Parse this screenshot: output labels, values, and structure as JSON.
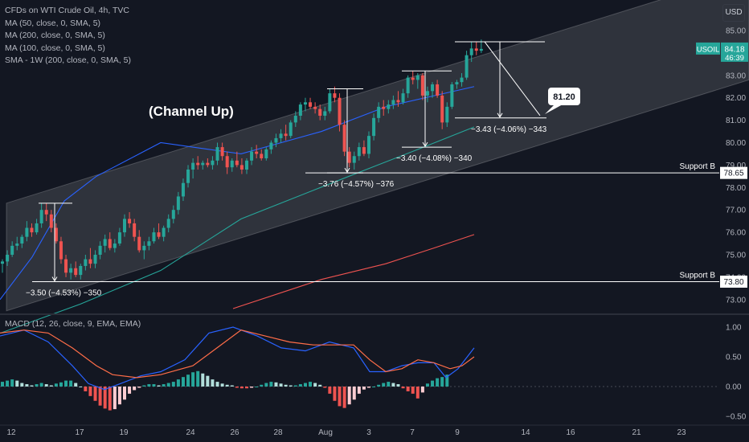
{
  "header": {
    "title": "CFDs on WTI Crude Oil, 4h, TVC",
    "indicators": [
      "MA (50, close, 0, SMA, 5)",
      "MA (200, close, 0, SMA, 5)",
      "MA (100, close, 0, SMA, 5)",
      "SMA - 1W (200, close, 0, SMA, 5)"
    ],
    "macd_label": "MACD (12, 26, close, 9, EMA, EMA)",
    "currency": "USD"
  },
  "colors": {
    "background": "#131722",
    "up": "#26a69a",
    "down": "#ef5350",
    "ma50": "#2962ff",
    "ma100": "#26a69a",
    "ma200": "#ef5350",
    "macd": "#2962ff",
    "signal": "#ff6d48"
  },
  "chart_data": [
    {
      "type": "candlestick",
      "symbol": "USOIL",
      "last_price": "84.18",
      "countdown": "46:39",
      "y_axis_ticks": [
        "85.00",
        "84.00",
        "83.00",
        "82.00",
        "81.00",
        "80.00",
        "79.00",
        "78.00",
        "77.00",
        "76.00",
        "75.00",
        "74.00",
        "73.00"
      ],
      "ylim": [
        72.5,
        86.2
      ],
      "x_axis_ticks": [
        "12",
        "17",
        "19",
        "24",
        "26",
        "28",
        "Aug",
        "3",
        "7",
        "9",
        "14",
        "16",
        "21",
        "23"
      ],
      "candles": [
        [
          74.6,
          74.8,
          74.2,
          74.7
        ],
        [
          74.7,
          75.2,
          74.5,
          75.0
        ],
        [
          75.0,
          75.6,
          74.9,
          75.4
        ],
        [
          75.4,
          75.8,
          75.2,
          75.5
        ],
        [
          75.5,
          75.9,
          75.3,
          75.8
        ],
        [
          75.8,
          76.5,
          75.6,
          76.2
        ],
        [
          76.2,
          76.4,
          75.8,
          76.0
        ],
        [
          76.0,
          76.6,
          75.9,
          76.4
        ],
        [
          76.4,
          77.3,
          76.2,
          77.0
        ],
        [
          77.0,
          77.3,
          76.5,
          76.8
        ],
        [
          76.8,
          77.0,
          76.0,
          76.2
        ],
        [
          76.2,
          76.4,
          75.5,
          75.6
        ],
        [
          75.6,
          75.8,
          74.6,
          74.8
        ],
        [
          74.8,
          75.0,
          74.0,
          74.2
        ],
        [
          74.2,
          74.6,
          73.9,
          74.4
        ],
        [
          74.4,
          74.7,
          74.0,
          74.1
        ],
        [
          74.1,
          74.6,
          73.9,
          74.5
        ],
        [
          74.5,
          75.0,
          74.3,
          74.8
        ],
        [
          74.8,
          75.3,
          74.4,
          74.6
        ],
        [
          74.6,
          75.2,
          74.4,
          75.0
        ],
        [
          75.0,
          75.6,
          74.8,
          75.4
        ],
        [
          75.4,
          75.9,
          75.1,
          75.7
        ],
        [
          75.7,
          76.0,
          75.2,
          75.3
        ],
        [
          75.3,
          75.7,
          75.1,
          75.5
        ],
        [
          75.5,
          76.2,
          75.4,
          76.0
        ],
        [
          76.0,
          76.8,
          75.8,
          76.6
        ],
        [
          76.6,
          76.9,
          76.2,
          76.4
        ],
        [
          76.4,
          76.6,
          75.6,
          75.8
        ],
        [
          75.8,
          76.1,
          75.1,
          75.2
        ],
        [
          75.2,
          75.6,
          74.8,
          75.4
        ],
        [
          75.4,
          75.8,
          75.2,
          75.6
        ],
        [
          75.6,
          76.2,
          75.5,
          76.0
        ],
        [
          76.0,
          76.4,
          75.7,
          75.8
        ],
        [
          75.8,
          76.3,
          75.6,
          76.2
        ],
        [
          76.2,
          76.8,
          76.0,
          76.6
        ],
        [
          76.6,
          77.2,
          76.4,
          77.0
        ],
        [
          77.0,
          77.8,
          76.8,
          77.6
        ],
        [
          77.6,
          78.4,
          77.4,
          78.2
        ],
        [
          78.2,
          79.0,
          78.0,
          78.8
        ],
        [
          78.8,
          79.3,
          78.4,
          79.1
        ],
        [
          79.1,
          79.4,
          78.8,
          79.0
        ],
        [
          79.0,
          79.2,
          78.8,
          79.1
        ],
        [
          79.1,
          79.3,
          78.9,
          79.0
        ],
        [
          79.0,
          79.4,
          78.8,
          79.2
        ],
        [
          79.2,
          80.0,
          79.0,
          79.8
        ],
        [
          79.8,
          80.0,
          79.2,
          79.4
        ],
        [
          79.4,
          79.6,
          78.6,
          78.9
        ],
        [
          78.9,
          79.3,
          78.7,
          79.2
        ],
        [
          79.2,
          79.6,
          78.9,
          79.0
        ],
        [
          79.0,
          79.3,
          78.6,
          78.8
        ],
        [
          78.8,
          79.3,
          78.6,
          79.2
        ],
        [
          79.2,
          79.8,
          79.0,
          79.6
        ],
        [
          79.6,
          79.9,
          79.3,
          79.5
        ],
        [
          79.5,
          79.7,
          79.2,
          79.3
        ],
        [
          79.3,
          79.8,
          79.2,
          79.7
        ],
        [
          79.7,
          80.1,
          79.5,
          80.0
        ],
        [
          80.0,
          80.4,
          79.8,
          80.2
        ],
        [
          80.2,
          80.6,
          80.0,
          80.4
        ],
        [
          80.4,
          80.8,
          80.1,
          80.3
        ],
        [
          80.3,
          81.0,
          80.2,
          80.9
        ],
        [
          80.9,
          81.4,
          80.7,
          81.2
        ],
        [
          81.2,
          81.8,
          81.0,
          81.7
        ],
        [
          81.7,
          82.0,
          81.4,
          81.8
        ],
        [
          81.8,
          82.0,
          81.5,
          81.6
        ],
        [
          81.6,
          81.8,
          81.3,
          81.5
        ],
        [
          81.5,
          81.7,
          81.0,
          81.2
        ],
        [
          81.2,
          81.6,
          81.0,
          81.4
        ],
        [
          81.4,
          82.4,
          81.3,
          82.2
        ],
        [
          82.2,
          82.5,
          81.8,
          82.0
        ],
        [
          82.0,
          82.2,
          80.5,
          80.8
        ],
        [
          80.8,
          81.0,
          79.4,
          79.6
        ],
        [
          79.6,
          79.8,
          78.9,
          79.1
        ],
        [
          79.1,
          79.6,
          78.8,
          79.4
        ],
        [
          79.4,
          80.0,
          79.2,
          79.8
        ],
        [
          79.8,
          80.1,
          79.4,
          79.5
        ],
        [
          79.5,
          80.5,
          79.3,
          80.3
        ],
        [
          80.3,
          81.3,
          80.1,
          81.1
        ],
        [
          81.1,
          81.8,
          80.9,
          81.6
        ],
        [
          81.6,
          81.9,
          81.2,
          81.5
        ],
        [
          81.5,
          81.9,
          81.3,
          81.7
        ],
        [
          81.7,
          82.1,
          81.5,
          81.9
        ],
        [
          81.9,
          82.3,
          81.6,
          81.8
        ],
        [
          81.8,
          82.4,
          81.7,
          82.2
        ],
        [
          82.2,
          83.0,
          82.0,
          82.9
        ],
        [
          82.9,
          83.2,
          82.6,
          82.8
        ],
        [
          82.8,
          83.1,
          82.4,
          83.0
        ],
        [
          83.0,
          83.1,
          81.9,
          82.1
        ],
        [
          82.1,
          82.5,
          81.8,
          82.3
        ],
        [
          82.3,
          82.7,
          82.0,
          82.6
        ],
        [
          82.6,
          82.8,
          82.0,
          82.1
        ],
        [
          82.1,
          82.3,
          80.6,
          80.9
        ],
        [
          80.9,
          81.8,
          80.7,
          81.6
        ],
        [
          81.6,
          82.7,
          81.5,
          82.6
        ],
        [
          82.6,
          82.8,
          82.4,
          82.7
        ],
        [
          82.7,
          83.1,
          82.5,
          82.9
        ],
        [
          82.9,
          84.1,
          82.8,
          83.9
        ],
        [
          83.9,
          84.5,
          83.6,
          84.2
        ],
        [
          84.2,
          84.5,
          83.9,
          84.1
        ],
        [
          84.1,
          84.6,
          84.0,
          84.18
        ]
      ],
      "ma50": [
        [
          0,
          73.0
        ],
        [
          40,
          74.9
        ],
        [
          80,
          77.4
        ],
        [
          120,
          78.5
        ],
        [
          200,
          80.0
        ],
        [
          300,
          79.5
        ],
        [
          400,
          80.5
        ],
        [
          480,
          81.6
        ],
        [
          590,
          82.5
        ]
      ],
      "ma100": [
        [
          0,
          71.5
        ],
        [
          100,
          72.8
        ],
        [
          200,
          74.3
        ],
        [
          300,
          76.6
        ],
        [
          420,
          78.3
        ],
        [
          470,
          79.0
        ],
        [
          520,
          79.7
        ],
        [
          590,
          80.7
        ]
      ],
      "ma200": [
        [
          290,
          72.6
        ],
        [
          400,
          73.9
        ],
        [
          480,
          74.6
        ],
        [
          540,
          75.3
        ],
        [
          590,
          75.9
        ]
      ],
      "channel": {
        "lower": [
          [
            8,
            72.5
          ],
          [
            932,
            82.8
          ]
        ],
        "upper": [
          [
            8,
            77.3
          ],
          [
            932,
            87.6
          ]
        ]
      },
      "support_levels": [
        {
          "label": "Support B",
          "value": "78.65",
          "price": 78.65,
          "from_x": 380
        },
        {
          "label": "Support B",
          "value": "73.80",
          "price": 73.8,
          "from_x": 40
        }
      ],
      "annotations": {
        "channel_label": "(Channel Up)",
        "target": "81.20",
        "measures": [
          {
            "label": "−3.50 (−4.53%) −350",
            "x": 68,
            "from": 77.3,
            "to": 73.8
          },
          {
            "label": "−3.76 (−4.57%) −376",
            "x": 432,
            "from": 82.4,
            "to": 78.65
          },
          {
            "label": "−3.40 (−4.08%) −340",
            "x": 529,
            "from": 83.2,
            "to": 79.8
          },
          {
            "label": "−3.43 (−4.06%) −343",
            "x": 622,
            "from": 84.5,
            "to": 81.1
          }
        ]
      }
    },
    {
      "type": "macd",
      "title": "MACD (12, 26, close, 9, EMA, EMA)",
      "y_axis_ticks": [
        "1.00",
        "0.50",
        "0.00",
        "-0.50"
      ],
      "ylim": [
        -0.55,
        1.1
      ],
      "macd": [
        [
          0,
          0.85
        ],
        [
          30,
          0.95
        ],
        [
          60,
          0.75
        ],
        [
          90,
          0.35
        ],
        [
          110,
          0.05
        ],
        [
          130,
          -0.05
        ],
        [
          150,
          0.05
        ],
        [
          175,
          0.18
        ],
        [
          200,
          0.25
        ],
        [
          230,
          0.45
        ],
        [
          260,
          0.9
        ],
        [
          290,
          1.0
        ],
        [
          320,
          0.85
        ],
        [
          350,
          0.65
        ],
        [
          380,
          0.6
        ],
        [
          410,
          0.75
        ],
        [
          440,
          0.65
        ],
        [
          460,
          0.25
        ],
        [
          480,
          0.25
        ],
        [
          500,
          0.35
        ],
        [
          520,
          0.4
        ],
        [
          540,
          0.4
        ],
        [
          555,
          0.15
        ],
        [
          570,
          0.3
        ],
        [
          590,
          0.65
        ]
      ],
      "signal": [
        [
          0,
          0.9
        ],
        [
          30,
          0.95
        ],
        [
          60,
          0.9
        ],
        [
          90,
          0.65
        ],
        [
          120,
          0.35
        ],
        [
          140,
          0.2
        ],
        [
          170,
          0.15
        ],
        [
          200,
          0.2
        ],
        [
          240,
          0.35
        ],
        [
          270,
          0.65
        ],
        [
          300,
          0.95
        ],
        [
          330,
          0.85
        ],
        [
          360,
          0.75
        ],
        [
          390,
          0.7
        ],
        [
          420,
          0.7
        ],
        [
          440,
          0.7
        ],
        [
          460,
          0.45
        ],
        [
          480,
          0.25
        ],
        [
          500,
          0.3
        ],
        [
          520,
          0.45
        ],
        [
          540,
          0.4
        ],
        [
          560,
          0.3
        ],
        [
          575,
          0.35
        ],
        [
          590,
          0.5
        ]
      ],
      "histogram": [
        0.08,
        0.1,
        0.12,
        0.1,
        0.06,
        0.04,
        0.02,
        0.04,
        0.06,
        0.04,
        0.02,
        0.05,
        0.07,
        0.1,
        0.1,
        0.06,
        0.0,
        -0.08,
        -0.16,
        -0.24,
        -0.32,
        -0.37,
        -0.4,
        -0.38,
        -0.3,
        -0.22,
        -0.12,
        -0.06,
        -0.02,
        0.02,
        0.04,
        0.04,
        0.02,
        0.04,
        0.06,
        0.08,
        0.12,
        0.16,
        0.2,
        0.24,
        0.26,
        0.22,
        0.18,
        0.12,
        0.08,
        0.05,
        0.03,
        0.02,
        -0.02,
        -0.03,
        -0.03,
        -0.02,
        0.0,
        0.03,
        0.06,
        0.08,
        0.07,
        0.05,
        0.03,
        0.02,
        0.02,
        0.04,
        0.06,
        0.08,
        0.06,
        0.03,
        -0.02,
        -0.12,
        -0.24,
        -0.33,
        -0.36,
        -0.3,
        -0.22,
        -0.12,
        -0.05,
        -0.02,
        0.0,
        0.03,
        0.06,
        0.08,
        0.06,
        0.04,
        -0.03,
        -0.08,
        -0.12,
        -0.2,
        -0.1,
        0.05,
        0.1,
        0.14,
        0.16,
        0.2
      ]
    }
  ]
}
